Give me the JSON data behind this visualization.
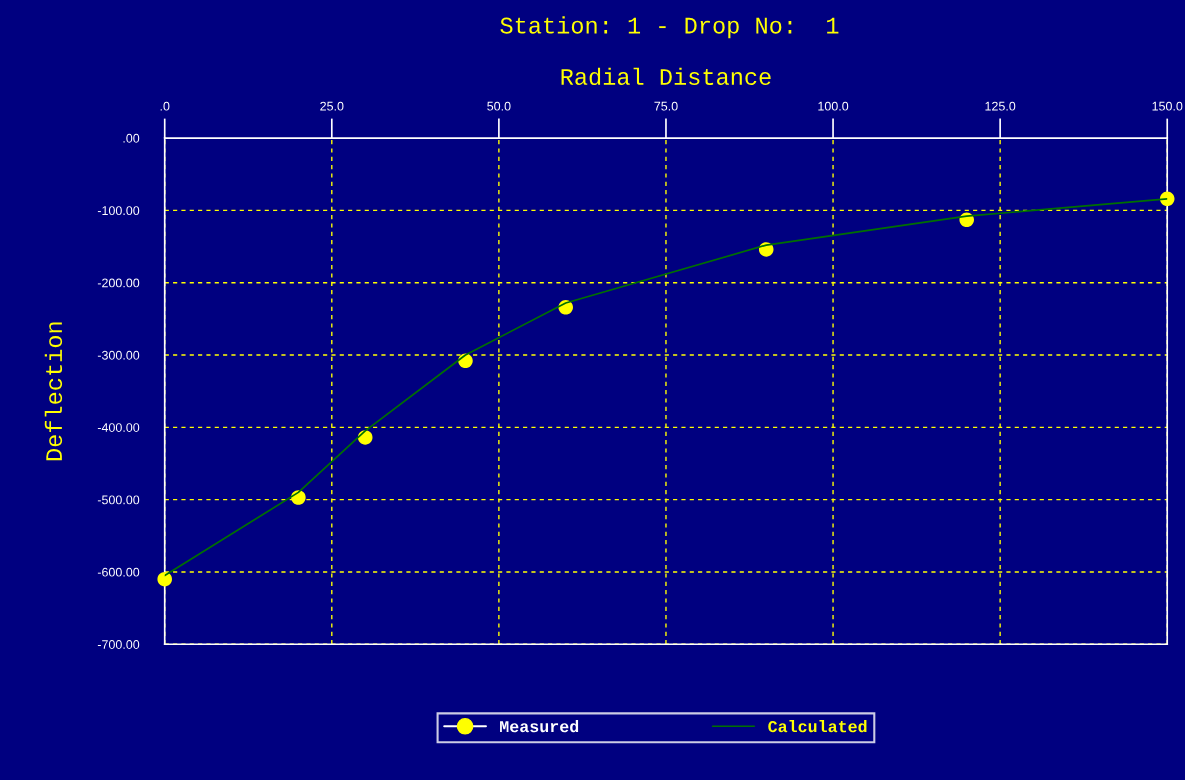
{
  "chart_data": {
    "type": "line",
    "title": "Station: 1 - Drop No:  1",
    "xlabel": "Radial Distance",
    "ylabel": "Deflection",
    "x": [
      0,
      20,
      30,
      45,
      60,
      90,
      120,
      150
    ],
    "series": [
      {
        "name": "Measured",
        "type": "scatter",
        "color": "#ffff00",
        "marker": "circle",
        "values": [
          -610,
          -497,
          -414,
          -308,
          -234,
          -154,
          -113,
          -84
        ]
      },
      {
        "name": "Calculated",
        "color": "#007000",
        "marker": "none",
        "line_style": "solid",
        "values": [
          -605,
          -490,
          -405,
          -300,
          -228,
          -148,
          -108,
          -84
        ]
      }
    ],
    "xlim": [
      0,
      150
    ],
    "xticks": [
      {
        "value": 0,
        "label": ".0"
      },
      {
        "value": 25,
        "label": "25.0"
      },
      {
        "value": 50,
        "label": "50.0"
      },
      {
        "value": 75,
        "label": "75.0"
      },
      {
        "value": 100,
        "label": "100.0"
      },
      {
        "value": 125,
        "label": "125.0"
      },
      {
        "value": 150,
        "label": "150.0"
      }
    ],
    "ylim": [
      -700,
      0
    ],
    "yticks": [
      {
        "value": 0,
        "label": ".00"
      },
      {
        "value": -100,
        "label": "-100.00"
      },
      {
        "value": -200,
        "label": "-200.00"
      },
      {
        "value": -300,
        "label": "-300.00"
      },
      {
        "value": -400,
        "label": "-400.00"
      },
      {
        "value": -500,
        "label": "-500.00"
      },
      {
        "value": -600,
        "label": "-600.00"
      },
      {
        "value": -700,
        "label": "-700.00"
      }
    ],
    "grid": true,
    "legend": "bottom"
  }
}
